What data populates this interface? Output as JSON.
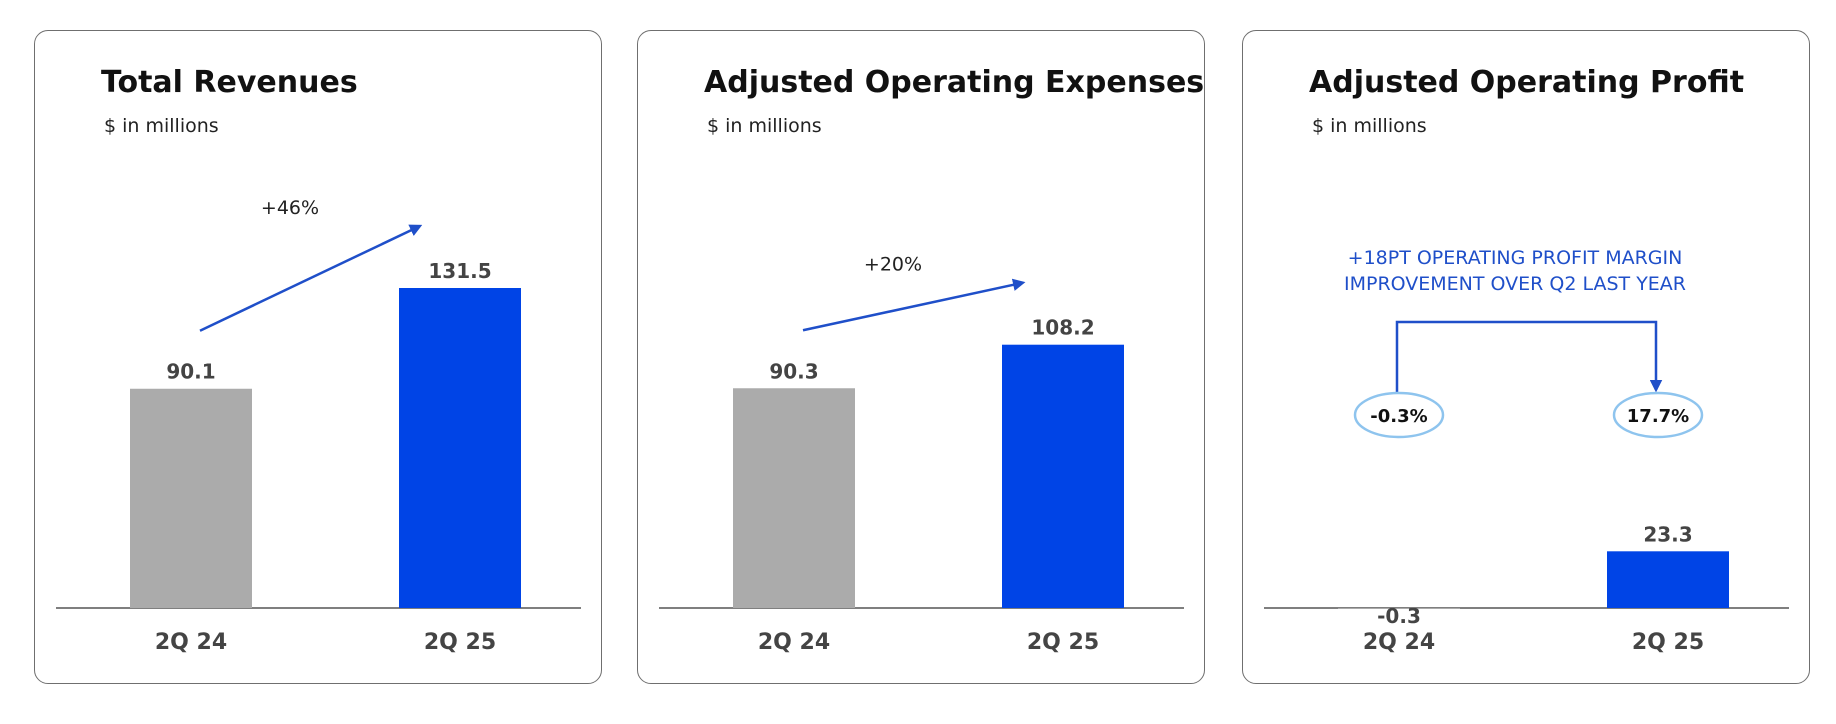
{
  "colors": {
    "prior": "#ababab",
    "current": "#0044e6",
    "accent": "#1f4fc9",
    "bubble": "#8ec4ee",
    "axis": "#555555",
    "label": "#444444"
  },
  "panels": [
    {
      "title": "Total Revenues",
      "subtitle": "$ in millions",
      "growth": "+46%"
    },
    {
      "title": "Adjusted Operating Expenses",
      "subtitle": "$ in millions",
      "growth": "+20%"
    },
    {
      "title": "Adjusted Operating Profit",
      "subtitle": "$ in millions",
      "margin_note": [
        "+18PT OPERATING PROFIT MARGIN",
        "IMPROVEMENT OVER Q2 LAST YEAR"
      ],
      "margins": [
        "-0.3%",
        "17.7%"
      ]
    }
  ],
  "chart_data": [
    {
      "type": "bar",
      "title": "Total Revenues",
      "unit": "$ in millions",
      "categories": [
        "2Q 24",
        "2Q 25"
      ],
      "values": [
        90.1,
        131.5
      ],
      "value_labels": [
        "90.1",
        "131.5"
      ],
      "annotation": "+46%"
    },
    {
      "type": "bar",
      "title": "Adjusted Operating Expenses",
      "unit": "$ in millions",
      "categories": [
        "2Q 24",
        "2Q 25"
      ],
      "values": [
        90.3,
        108.2
      ],
      "value_labels": [
        "90.3",
        "108.2"
      ],
      "annotation": "+20%"
    },
    {
      "type": "bar",
      "title": "Adjusted Operating Profit",
      "unit": "$ in millions",
      "categories": [
        "2Q 24",
        "2Q 25"
      ],
      "values": [
        -0.3,
        23.3
      ],
      "value_labels": [
        "-0.3",
        "23.3"
      ],
      "annotation": [
        "+18PT OPERATING PROFIT MARGIN",
        "IMPROVEMENT OVER Q2 LAST YEAR"
      ],
      "margins": [
        "-0.3%",
        "17.7%"
      ]
    }
  ]
}
